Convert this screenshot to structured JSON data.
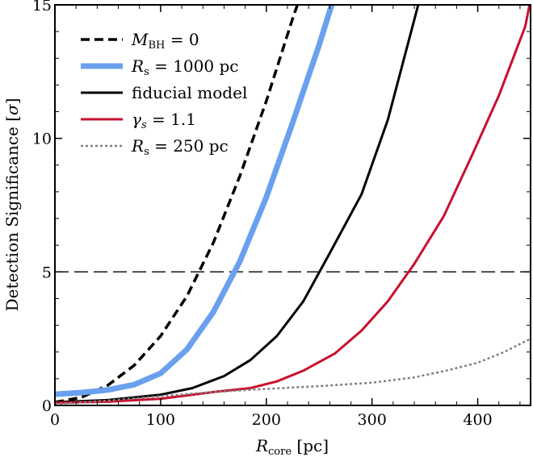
{
  "chart_data": {
    "type": "line",
    "title": "",
    "xlabel": "R_core [pc]",
    "ylabel": "Detection Significance [σ]",
    "xlim": [
      0,
      450
    ],
    "ylim": [
      0,
      15
    ],
    "x_ticks": [
      0,
      100,
      200,
      300,
      400
    ],
    "y_ticks": [
      0,
      5,
      10,
      15
    ],
    "x_tick_labels": [
      "0",
      "100",
      "200",
      "300",
      "400"
    ],
    "y_tick_labels": [
      "0",
      "5",
      "10",
      "15"
    ],
    "grid": false,
    "legend_position": "top-left",
    "reference_lines": [
      {
        "axis": "y",
        "value": 5,
        "style": "dashed",
        "color": "#000000"
      }
    ],
    "series": [
      {
        "name": "M_BH = 0",
        "color": "#000000",
        "style": "dashed",
        "x": [
          0,
          25,
          50,
          75,
          100,
          125,
          150,
          175,
          200,
          225,
          240
        ],
        "y": [
          0.12,
          0.3,
          0.75,
          1.5,
          2.6,
          4.1,
          6.1,
          8.6,
          11.4,
          14.5,
          16.2
        ]
      },
      {
        "name": "R_s = 1000 pc",
        "color": "#6aa0ee",
        "style": "solid-thick",
        "x": [
          0,
          25,
          50,
          75,
          100,
          125,
          150,
          175,
          200,
          225,
          250,
          265
        ],
        "y": [
          0.42,
          0.48,
          0.58,
          0.78,
          1.2,
          2.1,
          3.5,
          5.4,
          7.8,
          10.6,
          13.5,
          15.4
        ]
      },
      {
        "name": "fiducial model",
        "color": "#000000",
        "style": "solid",
        "x": [
          0,
          50,
          100,
          130,
          160,
          185,
          210,
          235,
          260,
          290,
          315,
          345
        ],
        "y": [
          0.12,
          0.2,
          0.4,
          0.65,
          1.1,
          1.7,
          2.6,
          3.9,
          5.7,
          7.9,
          10.7,
          15.2
        ]
      },
      {
        "name": "γ_s = 1.1",
        "color": "#c8102e",
        "style": "solid",
        "x": [
          0,
          50,
          100,
          150,
          185,
          210,
          235,
          265,
          290,
          315,
          340,
          368,
          395,
          420,
          445,
          450
        ],
        "y": [
          0.1,
          0.14,
          0.25,
          0.5,
          0.65,
          0.9,
          1.3,
          1.95,
          2.8,
          3.9,
          5.3,
          7.1,
          9.4,
          11.6,
          14.2,
          15.2
        ]
      },
      {
        "name": "R_s = 250 pc",
        "color": "#808080",
        "style": "dotted",
        "x": [
          0,
          50,
          100,
          150,
          200,
          250,
          300,
          340,
          370,
          400,
          425,
          450
        ],
        "y": [
          0.05,
          0.18,
          0.35,
          0.5,
          0.62,
          0.72,
          0.85,
          1.05,
          1.3,
          1.6,
          2.0,
          2.5
        ]
      }
    ]
  }
}
